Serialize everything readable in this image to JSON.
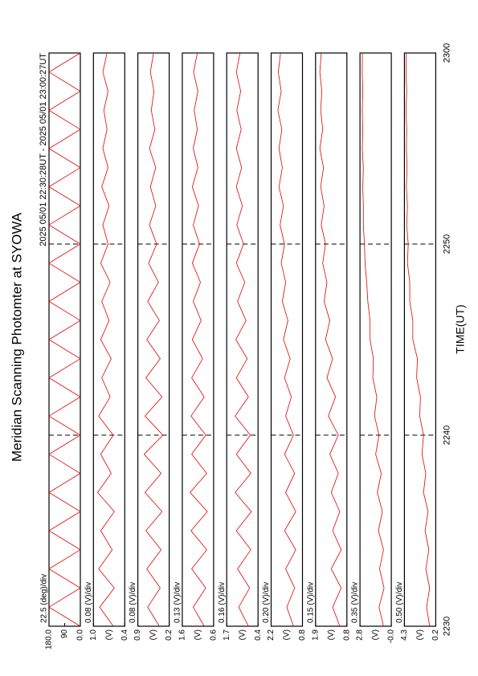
{
  "title": "Meridian Scanning Photomter at SYOWA",
  "time_range": "2025 05/01 22:30:28UT - 2025 05/01 23:00:27UT",
  "x_label": "TIME(UT)",
  "xlim": [
    0,
    30
  ],
  "xticks": [
    {
      "value": 0,
      "label": "2230"
    },
    {
      "value": 10,
      "label": "2240"
    },
    {
      "value": 20,
      "label": "2250"
    },
    {
      "value": 30,
      "label": "2300"
    }
  ],
  "x": [
    0,
    1,
    2,
    3,
    4,
    5,
    6,
    7,
    8,
    9,
    10,
    11,
    12,
    13,
    14,
    15,
    16,
    17,
    18,
    19,
    20,
    21,
    22,
    23,
    24,
    25,
    26,
    27,
    28,
    29,
    30
  ],
  "chart_data": [
    {
      "type": "line",
      "scale_label": "22.5 (deg)/div",
      "ylim": [
        0,
        180
      ],
      "yticks": [
        {
          "value": 180,
          "label": "180.0"
        },
        90,
        {
          "value": 0,
          "label": "0.0"
        }
      ],
      "series": [
        {
          "color": "#e00000",
          "values": [
            0,
            180,
            0,
            180,
            0,
            180,
            0,
            180,
            0,
            180,
            0,
            180,
            0,
            180,
            0,
            180,
            0,
            180,
            0,
            180,
            0,
            180,
            0,
            180,
            0,
            180,
            0,
            180,
            0,
            180,
            0
          ]
        }
      ]
    },
    {
      "type": "line",
      "scale_label": "0.08 (V)/div",
      "unit": "(V)",
      "ylim": [
        0.4,
        1.0
      ],
      "yticks": [
        {
          "value": 1.0,
          "label": "1.0"
        },
        0.4
      ],
      "series": [
        {
          "color": "#e00000",
          "values": [
            0.62,
            0.88,
            0.6,
            0.9,
            0.64,
            0.86,
            0.6,
            0.92,
            0.66,
            0.86,
            0.62,
            0.9,
            0.68,
            0.84,
            0.66,
            0.86,
            0.7,
            0.84,
            0.68,
            0.86,
            0.72,
            0.82,
            0.7,
            0.84,
            0.72,
            0.82,
            0.74,
            0.8,
            0.72,
            0.82,
            0.74
          ]
        }
      ]
    },
    {
      "type": "line",
      "scale_label": "0.08 (V)/div",
      "unit": "(V)",
      "ylim": [
        0.2,
        0.9
      ],
      "yticks": [
        0.9,
        0.2
      ],
      "series": [
        {
          "color": "#e00000",
          "values": [
            0.42,
            0.68,
            0.4,
            0.7,
            0.38,
            0.72,
            0.36,
            0.74,
            0.38,
            0.76,
            0.34,
            0.74,
            0.36,
            0.72,
            0.4,
            0.7,
            0.42,
            0.68,
            0.44,
            0.66,
            0.48,
            0.64,
            0.5,
            0.62,
            0.5,
            0.64,
            0.52,
            0.6,
            0.54,
            0.62,
            0.55
          ]
        }
      ]
    },
    {
      "type": "line",
      "scale_label": "0.13 (V)/div",
      "unit": "(V)",
      "ylim": [
        0.6,
        1.6
      ],
      "yticks": [
        1.6,
        0.6
      ],
      "series": [
        {
          "color": "#e00000",
          "values": [
            0.9,
            1.25,
            0.85,
            1.3,
            0.82,
            1.32,
            0.8,
            1.35,
            0.82,
            1.3,
            0.85,
            1.32,
            0.9,
            1.3,
            0.95,
            1.28,
            1.0,
            1.25,
            1.02,
            1.28,
            1.05,
            1.25,
            1.08,
            1.28,
            1.1,
            1.25,
            1.12,
            1.22,
            1.1,
            1.24,
            1.12
          ]
        }
      ]
    },
    {
      "type": "line",
      "scale_label": "0.16 (V)/div",
      "unit": "(V)",
      "ylim": [
        0.4,
        1.7
      ],
      "yticks": [
        1.7,
        0.4
      ],
      "series": [
        {
          "color": "#e00000",
          "values": [
            0.8,
            1.2,
            0.75,
            1.25,
            0.7,
            1.3,
            0.68,
            1.35,
            0.7,
            1.3,
            0.72,
            1.35,
            0.8,
            1.3,
            0.85,
            1.32,
            0.9,
            1.25,
            0.95,
            1.3,
            1.0,
            1.28,
            1.05,
            1.3,
            1.08,
            1.3,
            1.1,
            1.28,
            1.12,
            1.3,
            1.15
          ]
        }
      ]
    },
    {
      "type": "line",
      "scale_label": "0.20 (V)/div",
      "unit": "(V)",
      "ylim": [
        0.8,
        2.2
      ],
      "yticks": [
        2.2,
        0.8
      ],
      "series": [
        {
          "color": "#e00000",
          "values": [
            1.2,
            1.5,
            1.15,
            1.55,
            1.1,
            1.6,
            1.1,
            1.55,
            1.15,
            1.6,
            1.2,
            1.55,
            1.3,
            1.6,
            1.35,
            1.65,
            1.45,
            1.7,
            1.55,
            1.75,
            1.6,
            1.8,
            1.65,
            1.85,
            1.7,
            1.85,
            1.72,
            1.9,
            1.75,
            1.88,
            1.78
          ]
        }
      ]
    },
    {
      "type": "line",
      "scale_label": "0.15 (V)/div",
      "unit": "(V)",
      "ylim": [
        0.8,
        1.9
      ],
      "yticks": [
        1.9,
        0.8
      ],
      "series": [
        {
          "color": "#e00000",
          "values": [
            1.05,
            1.3,
            1.0,
            1.35,
            1.0,
            1.3,
            1.05,
            1.35,
            1.1,
            1.4,
            1.1,
            1.45,
            1.2,
            1.5,
            1.3,
            1.55,
            1.4,
            1.6,
            1.5,
            1.65,
            1.55,
            1.7,
            1.6,
            1.72,
            1.62,
            1.75,
            1.65,
            1.72,
            1.68,
            1.75,
            1.7
          ]
        }
      ]
    },
    {
      "type": "line",
      "scale_label": "0.35 (V)/div",
      "unit": "(V)",
      "ylim": [
        0,
        2.8
      ],
      "yticks": [
        2.8,
        {
          "value": 0,
          "label": "-0.0"
        }
      ],
      "series": [
        {
          "color": "#e00000",
          "values": [
            0.7,
            1.1,
            0.65,
            1.05,
            0.7,
            1.15,
            0.8,
            1.25,
            0.9,
            1.4,
            1.1,
            1.5,
            1.3,
            1.65,
            1.6,
            1.9,
            1.9,
            2.1,
            2.2,
            2.35,
            2.4,
            2.5,
            2.5,
            2.55,
            2.5,
            2.6,
            2.55,
            2.6,
            2.55,
            2.6,
            2.58
          ]
        }
      ]
    },
    {
      "type": "line",
      "scale_label": "0.50 (V)/div",
      "unit": "(V)",
      "ylim": [
        0.2,
        4.3
      ],
      "yticks": [
        4.3,
        0.2
      ],
      "series": [
        {
          "color": "#e00000",
          "values": [
            1.0,
            1.4,
            1.0,
            1.5,
            1.1,
            1.6,
            1.2,
            1.8,
            1.5,
            2.0,
            1.8,
            2.3,
            2.2,
            2.7,
            2.6,
            3.2,
            3.2,
            3.6,
            3.6,
            3.9,
            3.8,
            4.0,
            3.9,
            4.05,
            3.95,
            4.05,
            4.0,
            4.1,
            4.0,
            4.1,
            4.05
          ]
        }
      ]
    }
  ]
}
